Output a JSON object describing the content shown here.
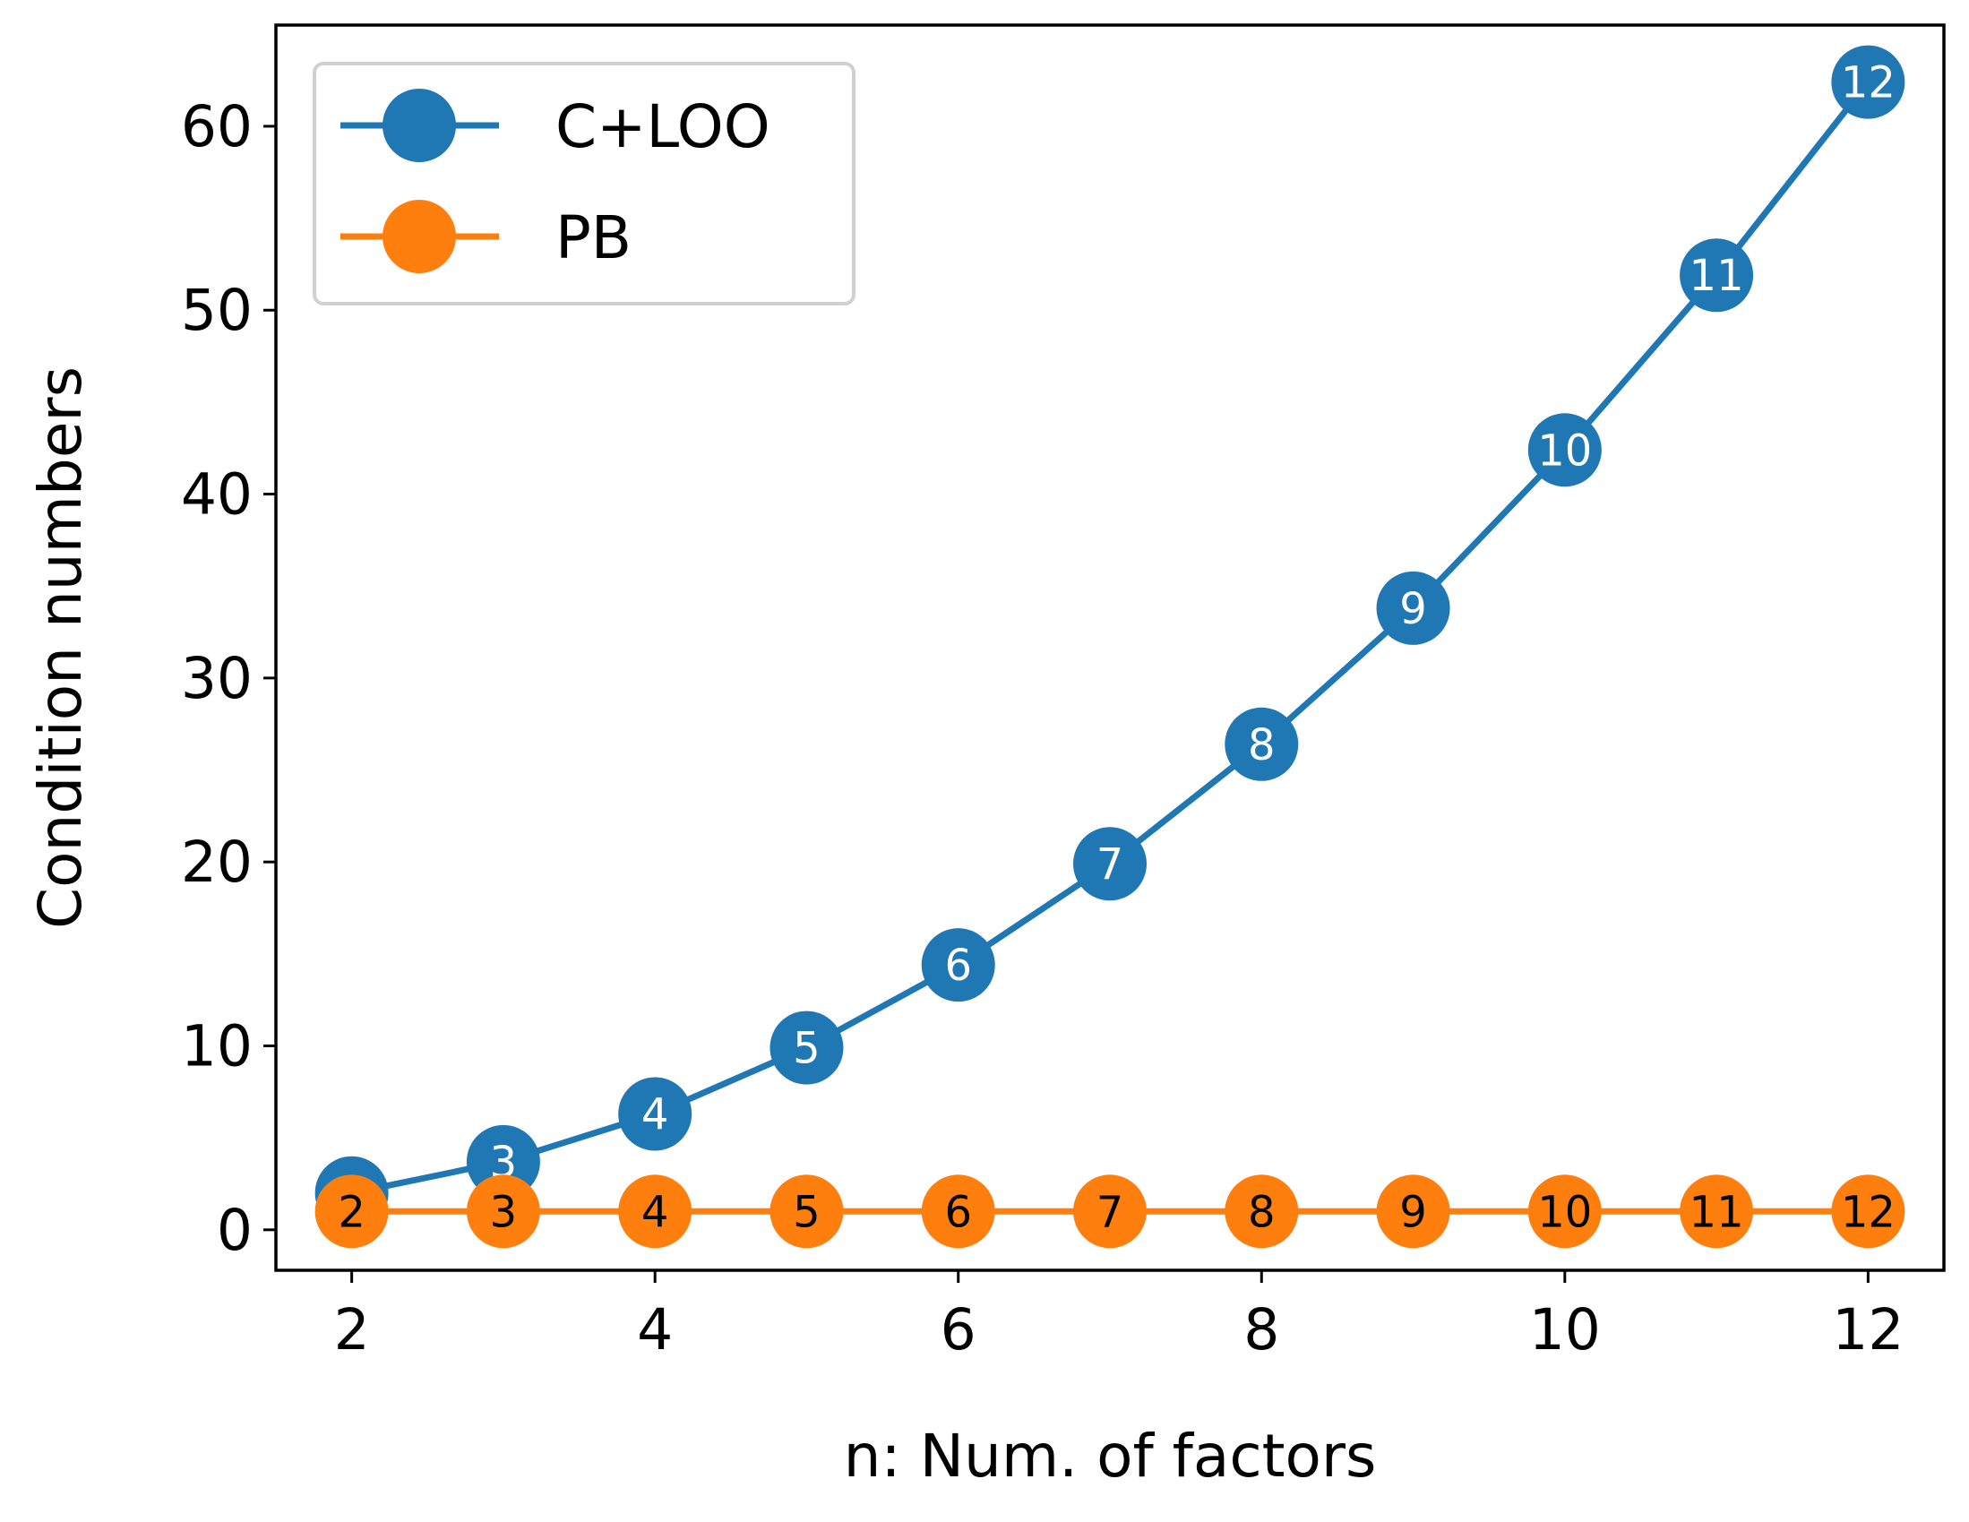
{
  "chart_data": {
    "type": "line",
    "title": "",
    "xlabel": "n: Num. of factors",
    "ylabel": "Condition numbers",
    "xlim": [
      1.5,
      12.5
    ],
    "ylim": [
      -2.2,
      65.5
    ],
    "xticks": [
      2,
      4,
      6,
      8,
      10,
      12
    ],
    "yticks": [
      0,
      10,
      20,
      30,
      40,
      50,
      60
    ],
    "grid": false,
    "legend_position": "upper-left",
    "x": [
      2,
      3,
      4,
      5,
      6,
      7,
      8,
      9,
      10,
      11,
      12
    ],
    "series": [
      {
        "name": "C+LOO",
        "color": "#1f77b4",
        "label_color": "#ffffff",
        "values": [
          2.0,
          3.7,
          6.3,
          9.9,
          14.4,
          19.9,
          26.4,
          33.8,
          42.4,
          51.9,
          62.4
        ],
        "point_labels": [
          "2",
          "3",
          "4",
          "5",
          "6",
          "7",
          "8",
          "9",
          "10",
          "11",
          "12"
        ]
      },
      {
        "name": "PB",
        "color": "#ff7f0e",
        "label_color": "#000000",
        "values": [
          1.0,
          1.0,
          1.0,
          1.0,
          1.0,
          1.0,
          1.0,
          1.0,
          1.0,
          1.0,
          1.0
        ],
        "point_labels": [
          "2",
          "3",
          "4",
          "5",
          "6",
          "7",
          "8",
          "9",
          "10",
          "11",
          "12"
        ]
      }
    ]
  }
}
